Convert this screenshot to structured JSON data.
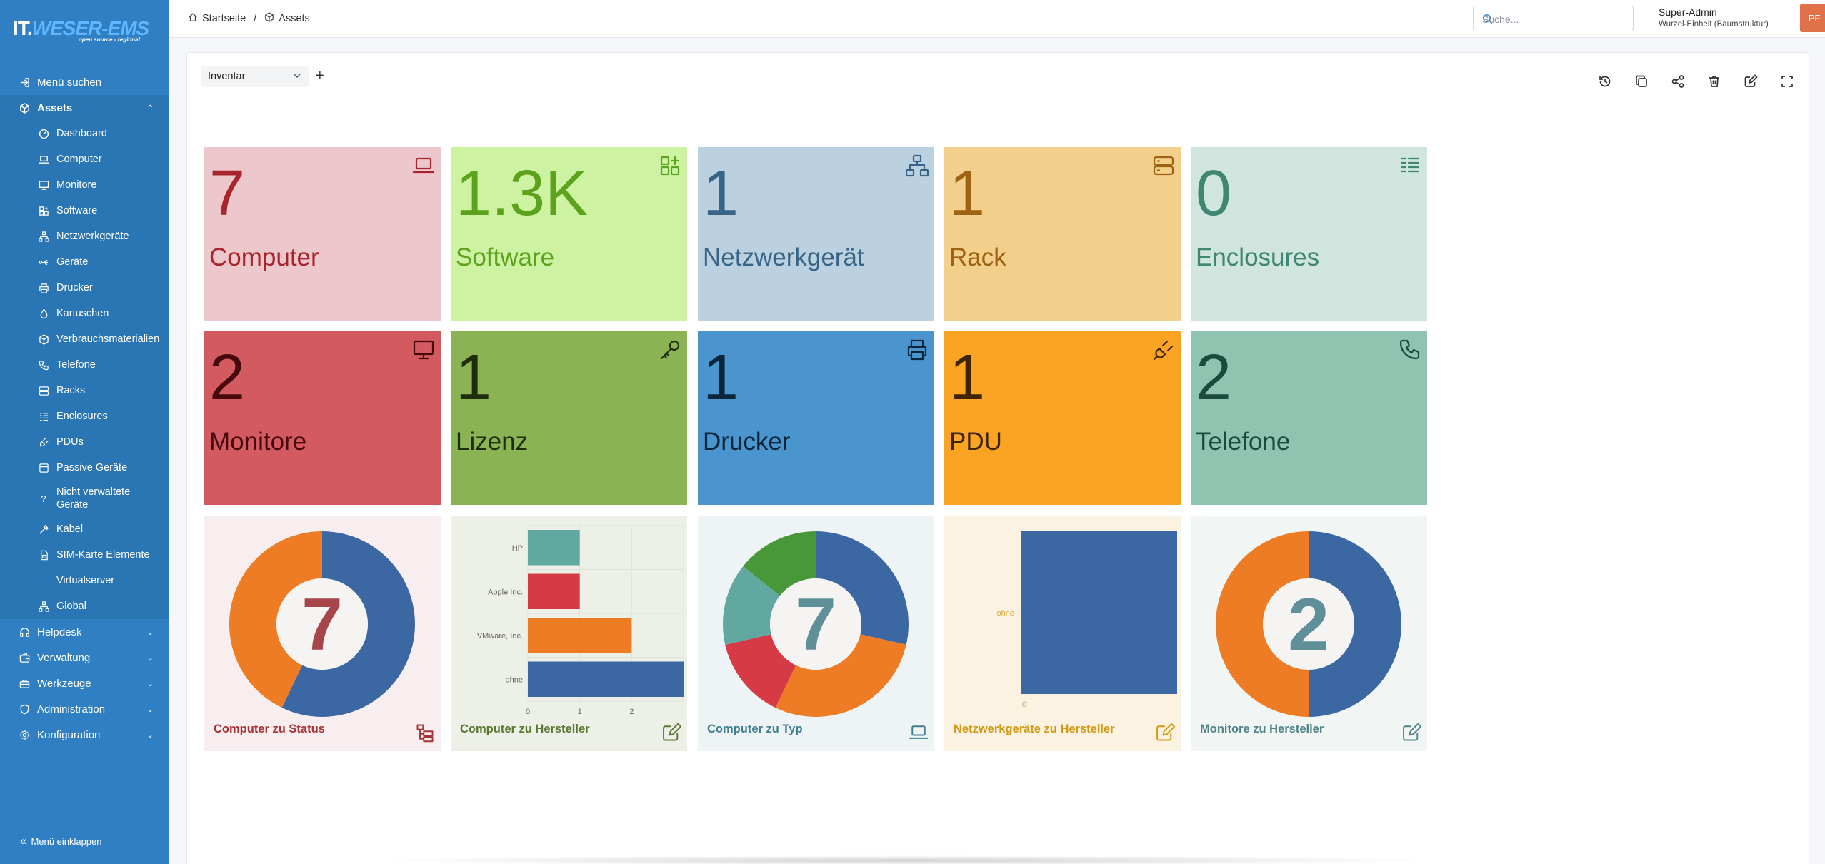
{
  "logo": {
    "brand_a": "IT.",
    "brand_b": "WESER-EMS",
    "tagline": "open source - regional"
  },
  "sidebar": {
    "items": [
      {
        "label": "Menü suchen",
        "icon": "login-arrow-icon"
      },
      {
        "label": "Assets",
        "icon": "cube-icon",
        "expanded": true
      },
      {
        "label": "Helpdesk",
        "icon": "headset-icon"
      },
      {
        "label": "Verwaltung",
        "icon": "wallet-icon"
      },
      {
        "label": "Werkzeuge",
        "icon": "briefcase-icon"
      },
      {
        "label": "Administration",
        "icon": "shield-icon"
      },
      {
        "label": "Konfiguration",
        "icon": "gear-icon"
      }
    ],
    "sub_items": [
      {
        "label": "Dashboard",
        "icon": "dashboard-icon"
      },
      {
        "label": "Computer",
        "icon": "laptop-icon"
      },
      {
        "label": "Monitore",
        "icon": "monitor-icon"
      },
      {
        "label": "Software",
        "icon": "apps-icon"
      },
      {
        "label": "Netzwerkgeräte",
        "icon": "network-icon"
      },
      {
        "label": "Geräte",
        "icon": "usb-icon"
      },
      {
        "label": "Drucker",
        "icon": "printer-icon"
      },
      {
        "label": "Kartuschen",
        "icon": "droplet-icon"
      },
      {
        "label": "Verbrauchsmaterialien",
        "icon": "package-icon"
      },
      {
        "label": "Telefone",
        "icon": "phone-icon"
      },
      {
        "label": "Racks",
        "icon": "server-icon"
      },
      {
        "label": "Enclosures",
        "icon": "list-icon"
      },
      {
        "label": "PDUs",
        "icon": "plug-icon"
      },
      {
        "label": "Passive Geräte",
        "icon": "box-icon"
      },
      {
        "label": "Nicht verwaltete Geräte",
        "icon": "question-icon"
      },
      {
        "label": "Kabel",
        "icon": "cable-icon"
      },
      {
        "label": "SIM-Karte Elemente",
        "icon": "sim-icon"
      },
      {
        "label": "Virtualserver",
        "icon": ""
      },
      {
        "label": "Global",
        "icon": "network-icon"
      }
    ],
    "collapse_label": "Menü einklappen"
  },
  "topbar": {
    "breadcrumb": [
      "Startseite",
      "Assets"
    ],
    "breadcrumb_sep": "/",
    "search_placeholder": "Suche...",
    "user_name": "Super-Admin",
    "user_entity": "Wurzel-Einheit (Baumstruktur)",
    "avatar_initials": "PF"
  },
  "dashboard": {
    "selected": "Inventar",
    "add_label": "+",
    "toolbar": [
      "history-icon",
      "copy-icon",
      "share-icon",
      "trash-icon",
      "edit-icon",
      "fullscreen-icon"
    ]
  },
  "tiles": [
    {
      "value": "7",
      "label": "Computer",
      "bg": "#ecc7cb",
      "fg": "#a7252c",
      "icon": "laptop-icon"
    },
    {
      "value": "1.3K",
      "label": "Software",
      "bg": "#cdf3a2",
      "fg": "#5ca21c",
      "icon": "apps-icon"
    },
    {
      "value": "1",
      "label": "Netzwerkgerät",
      "bg": "#bcd1df",
      "fg": "#386587",
      "icon": "network-icon"
    },
    {
      "value": "1",
      "label": "Rack",
      "bg": "#f2cf8b",
      "fg": "#9d6212",
      "icon": "server-icon"
    },
    {
      "value": "0",
      "label": "Enclosures",
      "bg": "#cfe5dd",
      "fg": "#3f8673",
      "icon": "list-icon"
    },
    {
      "value": "2",
      "label": "Monitore",
      "bg": "#d25a60",
      "fg": "#48090c",
      "icon": "monitor-icon"
    },
    {
      "value": "1",
      "label": "Lizenz",
      "bg": "#8ab454",
      "fg": "#1e2d0c",
      "icon": "key-icon"
    },
    {
      "value": "1",
      "label": "Drucker",
      "bg": "#4b95ce",
      "fg": "#0b253a",
      "icon": "printer-icon"
    },
    {
      "value": "1",
      "label": "PDU",
      "bg": "#fba323",
      "fg": "#3f2400",
      "icon": "plug-icon"
    },
    {
      "value": "2",
      "label": "Telefone",
      "bg": "#8fc5b0",
      "fg": "#1c4a3d",
      "icon": "phone-icon"
    }
  ],
  "widgets": [
    {
      "title": "Computer zu Status",
      "bg": "#f8eeef",
      "fg": "#a83236",
      "icon": "tree-icon",
      "center": "7"
    },
    {
      "title": "Computer zu Hersteller",
      "bg": "#ecf0e6",
      "fg": "#5a7733",
      "icon": "edit-icon"
    },
    {
      "title": "Computer zu Typ",
      "bg": "#eef4f6",
      "fg": "#3f7e8f",
      "icon": "laptop-icon",
      "center": "7"
    },
    {
      "title": "Netzwerkgeräte zu Hersteller",
      "bg": "#fcf2e2",
      "fg": "#d19a12",
      "icon": "edit-icon"
    },
    {
      "title": "Monitore zu Hersteller",
      "bg": "#f1f6f5",
      "fg": "#4f8387",
      "icon": "edit-icon",
      "center": "2"
    }
  ],
  "chart_data": [
    {
      "type": "pie",
      "title": "Computer zu Status",
      "total": 7,
      "values": [
        4,
        3
      ],
      "colors": [
        "#3b67a3",
        "#ee7c24"
      ]
    },
    {
      "type": "bar",
      "title": "Computer zu Hersteller",
      "orientation": "horizontal",
      "categories": [
        "HP",
        "Apple Inc.",
        "VMware, Inc.",
        "ohne"
      ],
      "values": [
        1,
        1,
        2,
        3
      ],
      "colors": [
        "#61a8a0",
        "#d63b45",
        "#ee7c24",
        "#3b67a3"
      ],
      "xticks": [
        0,
        1,
        2
      ],
      "xlim": [
        0,
        3
      ]
    },
    {
      "type": "pie",
      "title": "Computer zu Typ",
      "total": 7,
      "values": [
        2,
        2,
        1,
        1,
        1
      ],
      "colors": [
        "#3b67a3",
        "#ee7c24",
        "#d63b45",
        "#61a8a0",
        "#489739"
      ]
    },
    {
      "type": "bar",
      "title": "Netzwerkgeräte zu Hersteller",
      "orientation": "vertical",
      "categories": [
        "ohne"
      ],
      "values": [
        1
      ],
      "colors": [
        "#3b67a3"
      ],
      "xticks": [
        0
      ]
    },
    {
      "type": "pie",
      "title": "Monitore zu Hersteller",
      "total": 2,
      "values": [
        1,
        1
      ],
      "colors": [
        "#3b67a3",
        "#ee7c24"
      ]
    }
  ]
}
